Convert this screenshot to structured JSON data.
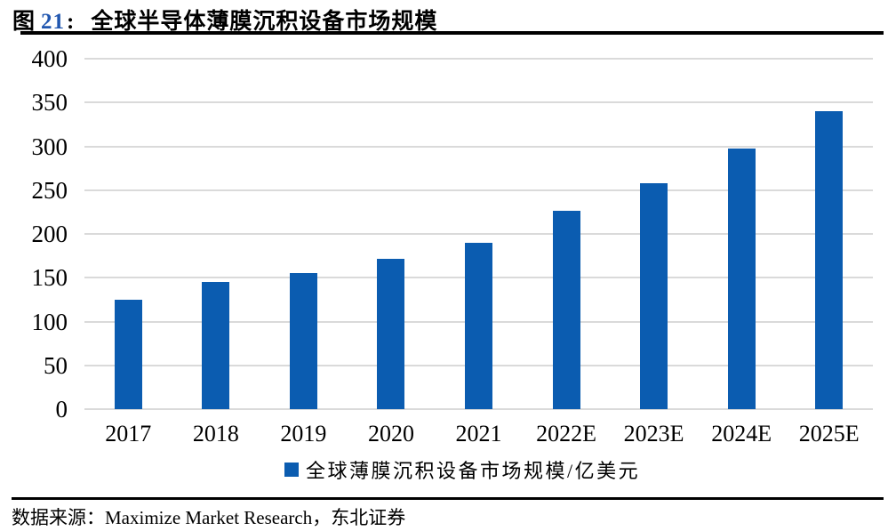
{
  "figure": {
    "label_prefix": "图",
    "number": "21",
    "separator": ":",
    "title": "全球半导体薄膜沉积设备市场规模"
  },
  "legend": {
    "marker": "blue-square",
    "label": "全球薄膜沉积设备市场规模/亿美元"
  },
  "source": {
    "text": "数据来源：Maximize Market Research，东北证券"
  },
  "colors": {
    "bar": "#0B5CB0",
    "gridline": "#DADADA",
    "figure_number": "#2157B0",
    "text": "#000000"
  },
  "chart_data": {
    "type": "bar",
    "title": "全球半导体薄膜沉积设备市场规模",
    "categories": [
      "2017",
      "2018",
      "2019",
      "2020",
      "2021",
      "2022E",
      "2023E",
      "2024E",
      "2025E"
    ],
    "values": [
      125,
      145,
      155,
      172,
      190,
      226,
      258,
      297,
      340
    ],
    "series_name": "全球薄膜沉积设备市场规模/亿美元",
    "xlabel": "",
    "ylabel": "",
    "ylim": [
      0,
      400
    ],
    "yticks": [
      0,
      50,
      100,
      150,
      200,
      250,
      300,
      350,
      400
    ],
    "grid": true,
    "legend_position": "bottom"
  }
}
